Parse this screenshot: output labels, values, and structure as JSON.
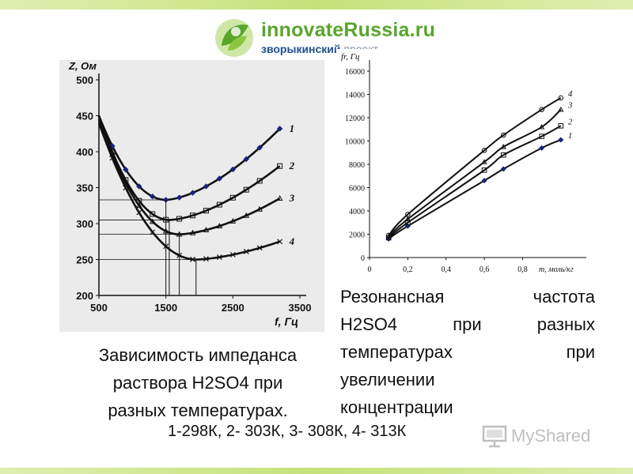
{
  "branding": {
    "logo_line1": "innovateRussia.ru",
    "logo_line2_bold": "зворыкинский",
    "logo_line2_light": "проект",
    "watermark": "MyShared",
    "accent_green": "#5aa52b",
    "accent_blue": "#1e4f8e"
  },
  "captions": {
    "left": [
      "Зависимость импеданса",
      "раствора H2SO4 при",
      "разных температурах."
    ],
    "right": [
      "Резонансная частота",
      "H2SO4 при разных",
      "температурах при",
      "увеличении",
      "концентрации"
    ],
    "legend": "1-298К, 2- 303К, 3- 308К, 4- 313К"
  },
  "chart_data": [
    {
      "type": "line",
      "ylabel": "Z, Ом",
      "xlabel": "f, Гц",
      "xlim": [
        500,
        3500
      ],
      "ylim": [
        200,
        500
      ],
      "x_ticks": [
        "500",
        "1500",
        "2500",
        "3500"
      ],
      "y_ticks": [
        "200",
        "250",
        "300",
        "350",
        "400",
        "450",
        "500"
      ],
      "series": [
        {
          "name": "1",
          "marker": "diamond",
          "x": [
            500,
            1500,
            3200
          ],
          "y": [
            450,
            333,
            432
          ]
        },
        {
          "name": "2",
          "marker": "square",
          "x": [
            500,
            1550,
            3200
          ],
          "y": [
            450,
            305,
            380
          ]
        },
        {
          "name": "3",
          "marker": "triangle",
          "x": [
            500,
            1700,
            3200
          ],
          "y": [
            445,
            285,
            335
          ]
        },
        {
          "name": "4",
          "marker": "cross",
          "x": [
            500,
            1950,
            3200
          ],
          "y": [
            440,
            250,
            275
          ]
        }
      ]
    },
    {
      "type": "line",
      "ylabel": "fr, Гц",
      "xlabel": "m, моль/кг",
      "xlim": [
        0,
        1.1
      ],
      "ylim": [
        0,
        16000
      ],
      "x_ticks": [
        "0",
        "0,2",
        "0,4",
        "0,6",
        "0,8"
      ],
      "y_ticks": [
        "0",
        "2000",
        "4000",
        "6000",
        "8000",
        "10000",
        "12000",
        "14000",
        "16000"
      ],
      "series": [
        {
          "name": "1",
          "marker": "diamond",
          "x": [
            0.1,
            0.2,
            0.6,
            0.7,
            0.9,
            1.0
          ],
          "y": [
            1600,
            2700,
            6600,
            7600,
            9400,
            10100
          ]
        },
        {
          "name": "2",
          "marker": "square",
          "x": [
            0.1,
            0.2,
            0.6,
            0.7,
            0.9,
            1.0
          ],
          "y": [
            1700,
            3000,
            7500,
            8800,
            10400,
            11300
          ]
        },
        {
          "name": "3",
          "marker": "triangle",
          "x": [
            0.1,
            0.2,
            0.6,
            0.7,
            0.9,
            1.0
          ],
          "y": [
            1800,
            3300,
            8200,
            9500,
            11200,
            12700
          ]
        },
        {
          "name": "4",
          "marker": "circle",
          "x": [
            0.1,
            0.2,
            0.6,
            0.7,
            0.9,
            1.0
          ],
          "y": [
            1900,
            3700,
            9200,
            10500,
            12700,
            13700
          ]
        }
      ]
    }
  ]
}
